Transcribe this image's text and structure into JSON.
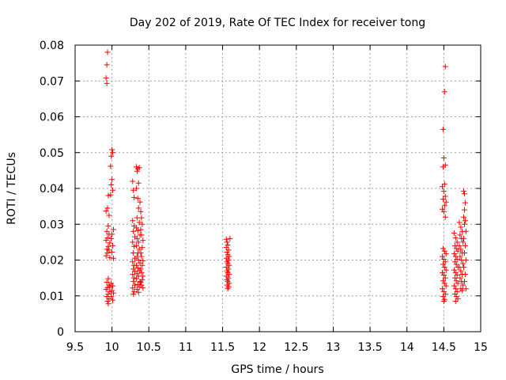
{
  "chart_data": {
    "type": "scatter",
    "title": "Day 202 of 2019, Rate Of TEC Index for receiver tong",
    "xlabel": "GPS time / hours",
    "ylabel": "ROTI / TECUs",
    "xlim": [
      9.5,
      15
    ],
    "ylim": [
      0,
      0.08
    ],
    "grid": true,
    "marker": "+",
    "color": "#ff0000",
    "xticks": [
      {
        "value": 9.5,
        "label": "9.5"
      },
      {
        "value": 10,
        "label": "10"
      },
      {
        "value": 10.5,
        "label": "10.5"
      },
      {
        "value": 11,
        "label": "11"
      },
      {
        "value": 11.5,
        "label": "11.5"
      },
      {
        "value": 12,
        "label": "12"
      },
      {
        "value": 12.5,
        "label": "12.5"
      },
      {
        "value": 13,
        "label": "13"
      },
      {
        "value": 13.5,
        "label": "13.5"
      },
      {
        "value": 14,
        "label": "14"
      },
      {
        "value": 14.5,
        "label": "14.5"
      },
      {
        "value": 15,
        "label": "15"
      }
    ],
    "yticks": [
      {
        "value": 0,
        "label": "0"
      },
      {
        "value": 0.01,
        "label": "0.01"
      },
      {
        "value": 0.02,
        "label": "0.02"
      },
      {
        "value": 0.03,
        "label": "0.03"
      },
      {
        "value": 0.04,
        "label": "0.04"
      },
      {
        "value": 0.05,
        "label": "0.05"
      },
      {
        "value": 0.06,
        "label": "0.06"
      },
      {
        "value": 0.07,
        "label": "0.07"
      },
      {
        "value": 0.08,
        "label": "0.08"
      }
    ],
    "points": [
      [
        9.94,
        0.078
      ],
      [
        9.93,
        0.0745
      ],
      [
        9.92,
        0.0708
      ],
      [
        9.93,
        0.0693
      ],
      [
        9.95,
        0.038
      ],
      [
        9.94,
        0.0345
      ],
      [
        9.92,
        0.0337
      ],
      [
        9.96,
        0.0325
      ],
      [
        9.95,
        0.0295
      ],
      [
        9.93,
        0.028
      ],
      [
        9.96,
        0.0272
      ],
      [
        9.94,
        0.0262
      ],
      [
        9.92,
        0.0255
      ],
      [
        9.97,
        0.0248
      ],
      [
        9.95,
        0.0238
      ],
      [
        9.93,
        0.023
      ],
      [
        9.96,
        0.0228
      ],
      [
        9.94,
        0.022
      ],
      [
        9.92,
        0.0212
      ],
      [
        9.97,
        0.0207
      ],
      [
        9.95,
        0.0148
      ],
      [
        9.93,
        0.0138
      ],
      [
        9.96,
        0.013
      ],
      [
        9.94,
        0.0123
      ],
      [
        9.92,
        0.0118
      ],
      [
        9.97,
        0.0112
      ],
      [
        9.95,
        0.0105
      ],
      [
        9.93,
        0.0098
      ],
      [
        9.96,
        0.0092
      ],
      [
        9.94,
        0.0085
      ],
      [
        9.95,
        0.0078
      ],
      [
        9.97,
        0.0125
      ],
      [
        10.0,
        0.0508
      ],
      [
        10.01,
        0.05
      ],
      [
        9.99,
        0.049
      ],
      [
        9.98,
        0.0462
      ],
      [
        10.0,
        0.0425
      ],
      [
        9.99,
        0.041
      ],
      [
        10.01,
        0.0395
      ],
      [
        9.98,
        0.0382
      ],
      [
        10.02,
        0.0285
      ],
      [
        10.0,
        0.0272
      ],
      [
        9.99,
        0.026
      ],
      [
        10.01,
        0.024
      ],
      [
        10.0,
        0.0222
      ],
      [
        10.02,
        0.0205
      ],
      [
        9.99,
        0.0135
      ],
      [
        10.01,
        0.0128
      ],
      [
        10.0,
        0.0115
      ],
      [
        10.02,
        0.0108
      ],
      [
        9.99,
        0.0098
      ],
      [
        10.01,
        0.0088
      ],
      [
        10.28,
        0.042
      ],
      [
        10.29,
        0.0395
      ],
      [
        10.3,
        0.0375
      ],
      [
        10.28,
        0.031
      ],
      [
        10.3,
        0.0295
      ],
      [
        10.29,
        0.028
      ],
      [
        10.31,
        0.0265
      ],
      [
        10.28,
        0.025
      ],
      [
        10.3,
        0.0238
      ],
      [
        10.29,
        0.022
      ],
      [
        10.31,
        0.0205
      ],
      [
        10.28,
        0.0195
      ],
      [
        10.3,
        0.0185
      ],
      [
        10.29,
        0.0175
      ],
      [
        10.31,
        0.0168
      ],
      [
        10.28,
        0.016
      ],
      [
        10.3,
        0.015
      ],
      [
        10.29,
        0.014
      ],
      [
        10.31,
        0.013
      ],
      [
        10.28,
        0.0122
      ],
      [
        10.3,
        0.0112
      ],
      [
        10.29,
        0.0105
      ],
      [
        10.33,
        0.046
      ],
      [
        10.35,
        0.0455
      ],
      [
        10.37,
        0.0458
      ],
      [
        10.34,
        0.0448
      ],
      [
        10.36,
        0.0415
      ],
      [
        10.33,
        0.04
      ],
      [
        10.35,
        0.0372
      ],
      [
        10.38,
        0.0362
      ],
      [
        10.36,
        0.0345
      ],
      [
        10.34,
        0.0318
      ],
      [
        10.37,
        0.0305
      ],
      [
        10.33,
        0.029
      ],
      [
        10.35,
        0.0282
      ],
      [
        10.38,
        0.027
      ],
      [
        10.34,
        0.026
      ],
      [
        10.36,
        0.025
      ],
      [
        10.33,
        0.024
      ],
      [
        10.37,
        0.023
      ],
      [
        10.35,
        0.022
      ],
      [
        10.34,
        0.021
      ],
      [
        10.36,
        0.02
      ],
      [
        10.38,
        0.0192
      ],
      [
        10.33,
        0.0185
      ],
      [
        10.35,
        0.0178
      ],
      [
        10.37,
        0.017
      ],
      [
        10.34,
        0.0162
      ],
      [
        10.36,
        0.0155
      ],
      [
        10.33,
        0.0148
      ],
      [
        10.38,
        0.014
      ],
      [
        10.35,
        0.0132
      ],
      [
        10.37,
        0.0125
      ],
      [
        10.34,
        0.0118
      ],
      [
        10.36,
        0.011
      ],
      [
        10.39,
        0.0335
      ],
      [
        10.4,
        0.0318
      ],
      [
        10.41,
        0.03
      ],
      [
        10.39,
        0.0285
      ],
      [
        10.4,
        0.027
      ],
      [
        10.42,
        0.0255
      ],
      [
        10.41,
        0.0235
      ],
      [
        10.39,
        0.022
      ],
      [
        10.4,
        0.021
      ],
      [
        10.42,
        0.0198
      ],
      [
        10.41,
        0.0185
      ],
      [
        10.39,
        0.0175
      ],
      [
        10.4,
        0.0165
      ],
      [
        10.42,
        0.0155
      ],
      [
        10.41,
        0.0145
      ],
      [
        10.39,
        0.0138
      ],
      [
        10.4,
        0.013
      ],
      [
        10.42,
        0.0122
      ],
      [
        11.55,
        0.0258
      ],
      [
        11.56,
        0.025
      ],
      [
        11.57,
        0.0242
      ],
      [
        11.55,
        0.0235
      ],
      [
        11.58,
        0.0228
      ],
      [
        11.56,
        0.0222
      ],
      [
        11.57,
        0.0215
      ],
      [
        11.59,
        0.021
      ],
      [
        11.55,
        0.0205
      ],
      [
        11.58,
        0.02
      ],
      [
        11.56,
        0.0195
      ],
      [
        11.57,
        0.019
      ],
      [
        11.59,
        0.0185
      ],
      [
        11.55,
        0.018
      ],
      [
        11.58,
        0.0175
      ],
      [
        11.56,
        0.017
      ],
      [
        11.57,
        0.0165
      ],
      [
        11.59,
        0.016
      ],
      [
        11.55,
        0.0155
      ],
      [
        11.58,
        0.015
      ],
      [
        11.56,
        0.0145
      ],
      [
        11.57,
        0.014
      ],
      [
        11.59,
        0.0135
      ],
      [
        11.56,
        0.013
      ],
      [
        11.58,
        0.0125
      ],
      [
        11.57,
        0.012
      ],
      [
        11.6,
        0.026
      ],
      [
        14.52,
        0.074
      ],
      [
        14.51,
        0.067
      ],
      [
        14.49,
        0.0565
      ],
      [
        14.5,
        0.0485
      ],
      [
        14.52,
        0.0465
      ],
      [
        14.49,
        0.046
      ],
      [
        14.51,
        0.0412
      ],
      [
        14.48,
        0.0405
      ],
      [
        14.5,
        0.0392
      ],
      [
        14.52,
        0.0378
      ],
      [
        14.49,
        0.037
      ],
      [
        14.53,
        0.0362
      ],
      [
        14.51,
        0.0352
      ],
      [
        14.48,
        0.0342
      ],
      [
        14.5,
        0.0335
      ],
      [
        14.52,
        0.032
      ],
      [
        14.49,
        0.0232
      ],
      [
        14.51,
        0.0225
      ],
      [
        14.53,
        0.0218
      ],
      [
        14.48,
        0.021
      ],
      [
        14.5,
        0.0202
      ],
      [
        14.52,
        0.0195
      ],
      [
        14.49,
        0.0188
      ],
      [
        14.51,
        0.018
      ],
      [
        14.53,
        0.0172
      ],
      [
        14.48,
        0.0165
      ],
      [
        14.5,
        0.0158
      ],
      [
        14.52,
        0.015
      ],
      [
        14.49,
        0.0142
      ],
      [
        14.51,
        0.0135
      ],
      [
        14.53,
        0.0128
      ],
      [
        14.48,
        0.012
      ],
      [
        14.5,
        0.0112
      ],
      [
        14.52,
        0.0105
      ],
      [
        14.49,
        0.0098
      ],
      [
        14.51,
        0.009
      ],
      [
        14.5,
        0.0085
      ],
      [
        14.64,
        0.0275
      ],
      [
        14.66,
        0.0262
      ],
      [
        14.68,
        0.025
      ],
      [
        14.65,
        0.024
      ],
      [
        14.67,
        0.0232
      ],
      [
        14.69,
        0.0225
      ],
      [
        14.64,
        0.0218
      ],
      [
        14.66,
        0.021
      ],
      [
        14.68,
        0.0202
      ],
      [
        14.65,
        0.0195
      ],
      [
        14.67,
        0.0188
      ],
      [
        14.69,
        0.018
      ],
      [
        14.64,
        0.0172
      ],
      [
        14.66,
        0.0165
      ],
      [
        14.68,
        0.0158
      ],
      [
        14.65,
        0.015
      ],
      [
        14.67,
        0.0142
      ],
      [
        14.69,
        0.0135
      ],
      [
        14.64,
        0.0128
      ],
      [
        14.66,
        0.012
      ],
      [
        14.68,
        0.0112
      ],
      [
        14.65,
        0.0105
      ],
      [
        14.67,
        0.0098
      ],
      [
        14.69,
        0.0092
      ],
      [
        14.66,
        0.0085
      ],
      [
        14.71,
        0.0305
      ],
      [
        14.73,
        0.0292
      ],
      [
        14.75,
        0.028
      ],
      [
        14.72,
        0.027
      ],
      [
        14.74,
        0.026
      ],
      [
        14.76,
        0.025
      ],
      [
        14.71,
        0.024
      ],
      [
        14.73,
        0.023
      ],
      [
        14.75,
        0.022
      ],
      [
        14.72,
        0.021
      ],
      [
        14.74,
        0.02
      ],
      [
        14.76,
        0.019
      ],
      [
        14.71,
        0.018
      ],
      [
        14.73,
        0.017
      ],
      [
        14.75,
        0.016
      ],
      [
        14.72,
        0.015
      ],
      [
        14.74,
        0.014
      ],
      [
        14.76,
        0.013
      ],
      [
        14.73,
        0.012
      ],
      [
        14.75,
        0.0115
      ],
      [
        14.77,
        0.0392
      ],
      [
        14.78,
        0.0385
      ],
      [
        14.79,
        0.036
      ],
      [
        14.78,
        0.034
      ],
      [
        14.77,
        0.032
      ],
      [
        14.79,
        0.031
      ],
      [
        14.78,
        0.03
      ],
      [
        14.8,
        0.028
      ],
      [
        14.77,
        0.026
      ],
      [
        14.79,
        0.024
      ],
      [
        14.78,
        0.022
      ],
      [
        14.8,
        0.02
      ],
      [
        14.77,
        0.018
      ],
      [
        14.79,
        0.016
      ],
      [
        14.78,
        0.014
      ],
      [
        14.8,
        0.012
      ]
    ]
  }
}
